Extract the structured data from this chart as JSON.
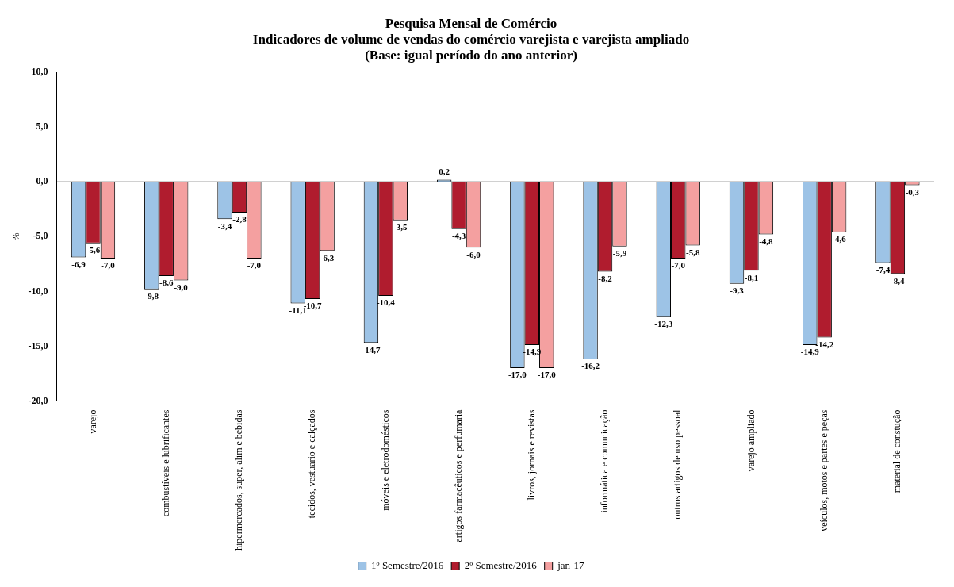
{
  "chart_data": {
    "type": "bar",
    "title": "Pesquisa Mensal de Comércio",
    "subtitle": "Indicadores de volume de vendas do comércio varejista e varejista ampliado\n(Base: igual período do ano anterior)",
    "ylabel": "%",
    "categories": [
      "varejo",
      "combustíveis e lubrificantes",
      "hipermercados, super, alim e bebidas",
      "tecidos, vestuario e calçados",
      "móveis e eletrodomésticos",
      "artigos farmacêuticos e perfumaria",
      "livros, jornais e revistas",
      "informática e comunicação",
      "outros artigos de uso pessoal",
      "varejo ampliado",
      "veículos, motos e partes e peças",
      "material de constução"
    ],
    "series": [
      {
        "name": "1º Semestre/2016",
        "color": "#9dc3e6",
        "values": [
          -6.9,
          -9.8,
          -3.4,
          -11.1,
          -14.7,
          0.2,
          -17.0,
          -16.2,
          -12.3,
          -9.3,
          -14.9,
          -7.4
        ],
        "value_labels": [
          "-6,9",
          "-9,8",
          "-3,4",
          "-11,1",
          "-14,7",
          "0,2",
          "-17,0",
          "-16,2",
          "-12,3",
          "-9,3",
          "-14,9",
          "-7,4"
        ]
      },
      {
        "name": "2º Semestre/2016",
        "color": "#b01c2e",
        "values": [
          -5.6,
          -8.6,
          -2.8,
          -10.7,
          -10.4,
          -4.3,
          -14.9,
          -8.2,
          -7.0,
          -8.1,
          -14.2,
          -8.4
        ],
        "value_labels": [
          "-5,6",
          "-8,6",
          "-2,8",
          "-10,7",
          "-10,4",
          "-4,3",
          "-14,9",
          "-8,2",
          "-7,0",
          "-8,1",
          "-14,2",
          "-8,4"
        ]
      },
      {
        "name": "jan-17",
        "color": "#f4a0a0",
        "values": [
          -7.0,
          -9.0,
          -7.0,
          -6.3,
          -3.5,
          -6.0,
          -17.0,
          -5.9,
          -5.8,
          -4.8,
          -4.6,
          -0.3
        ],
        "value_labels": [
          "-7,0",
          "-9,0",
          "-7,0",
          "-6,3",
          "-3,5",
          "-6,0",
          "-17,0",
          "-5,9",
          "-5,8",
          "-4,8",
          "-4,6",
          "-0,3"
        ]
      }
    ],
    "ylim": [
      -20,
      10
    ],
    "yticks": [
      {
        "value": -20,
        "label": "-20,0"
      },
      {
        "value": -15,
        "label": "-15,0"
      },
      {
        "value": -10,
        "label": "-10,0"
      },
      {
        "value": -5,
        "label": "-5,0"
      },
      {
        "value": 0,
        "label": "0,0"
      },
      {
        "value": 5,
        "label": "5,0"
      },
      {
        "value": 10,
        "label": "10,0"
      }
    ],
    "ref_lines": [
      {
        "axis": "y",
        "value": 0,
        "color": "#000000"
      }
    ],
    "grid": false,
    "legend": "bottom"
  }
}
